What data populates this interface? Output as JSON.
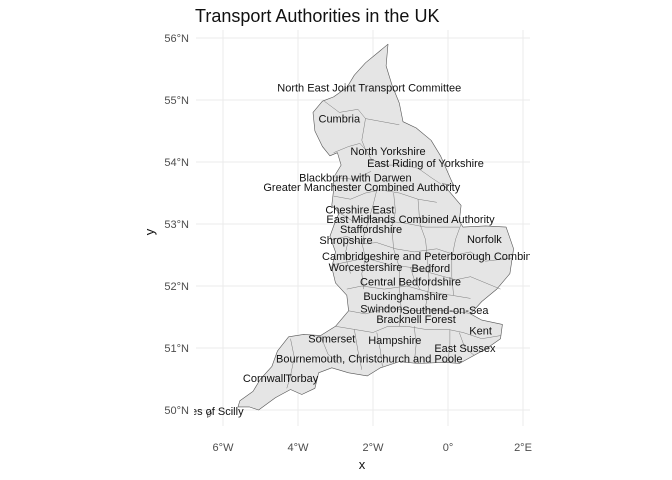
{
  "title": "Transport Authorities in the UK",
  "axis": {
    "x_title": "x",
    "y_title": "y",
    "x_ticks": [
      {
        "value": -6,
        "label": "6°W"
      },
      {
        "value": -4,
        "label": "4°W"
      },
      {
        "value": -2,
        "label": "2°W"
      },
      {
        "value": 0,
        "label": "0°"
      },
      {
        "value": 2,
        "label": "2°E"
      }
    ],
    "y_ticks": [
      {
        "value": 50,
        "label": "50°N"
      },
      {
        "value": 51,
        "label": "51°N"
      },
      {
        "value": 52,
        "label": "52°N"
      },
      {
        "value": 53,
        "label": "53°N"
      },
      {
        "value": 54,
        "label": "54°N"
      },
      {
        "value": 55,
        "label": "55°N"
      },
      {
        "value": 56,
        "label": "56°N"
      }
    ]
  },
  "map": {
    "land_fill": "#e5e5e5",
    "border_color": "#555555",
    "labels": [
      {
        "text": "North East Joint Transport Committee",
        "lon": -2.1,
        "lat": 55.2
      },
      {
        "text": "Cumbria",
        "lon": -2.9,
        "lat": 54.7
      },
      {
        "text": "North Yorkshire",
        "lon": -1.6,
        "lat": 54.18
      },
      {
        "text": "East Riding of Yorkshire",
        "lon": -0.6,
        "lat": 53.98
      },
      {
        "text": "Blackburn with Darwen",
        "lon": -2.47,
        "lat": 53.75
      },
      {
        "text": "Greater Manchester Combined Authority",
        "lon": -2.3,
        "lat": 53.6
      },
      {
        "text": "Cheshire East",
        "lon": -2.35,
        "lat": 53.23
      },
      {
        "text": "East Midlands Combined Authority",
        "lon": -1.0,
        "lat": 53.08
      },
      {
        "text": "Staffordshire",
        "lon": -2.05,
        "lat": 52.92
      },
      {
        "text": "Shropshire",
        "lon": -2.72,
        "lat": 52.74
      },
      {
        "text": "Norfolk",
        "lon": 0.97,
        "lat": 52.76
      },
      {
        "text": "Cambridgeshire and Peterborough Combined",
        "lon": -0.4,
        "lat": 52.48
      },
      {
        "text": "Worcestershire",
        "lon": -2.2,
        "lat": 52.31
      },
      {
        "text": "Bedford",
        "lon": -0.46,
        "lat": 52.29
      },
      {
        "text": "Central Bedfordshire",
        "lon": -1.0,
        "lat": 52.07
      },
      {
        "text": "Buckinghamshire",
        "lon": -1.13,
        "lat": 51.84
      },
      {
        "text": "Swindon",
        "lon": -1.78,
        "lat": 51.64
      },
      {
        "text": "Southend-on-Sea",
        "lon": -0.07,
        "lat": 51.61
      },
      {
        "text": "Bracknell Forest",
        "lon": -0.85,
        "lat": 51.47
      },
      {
        "text": "Kent",
        "lon": 0.87,
        "lat": 51.28
      },
      {
        "text": "Somerset",
        "lon": -3.1,
        "lat": 51.15
      },
      {
        "text": "Hampshire",
        "lon": -1.42,
        "lat": 51.13
      },
      {
        "text": "East Sussex",
        "lon": 0.45,
        "lat": 51.0
      },
      {
        "text": "Bournemouth, Christchurch and Poole",
        "lon": -2.1,
        "lat": 50.83
      },
      {
        "text": "Cornwall",
        "lon": -4.9,
        "lat": 50.52
      },
      {
        "text": "Torbay",
        "lon": -3.9,
        "lat": 50.52
      },
      {
        "text": "Isles of Scilly",
        "lon": -6.3,
        "lat": 49.98
      }
    ]
  }
}
